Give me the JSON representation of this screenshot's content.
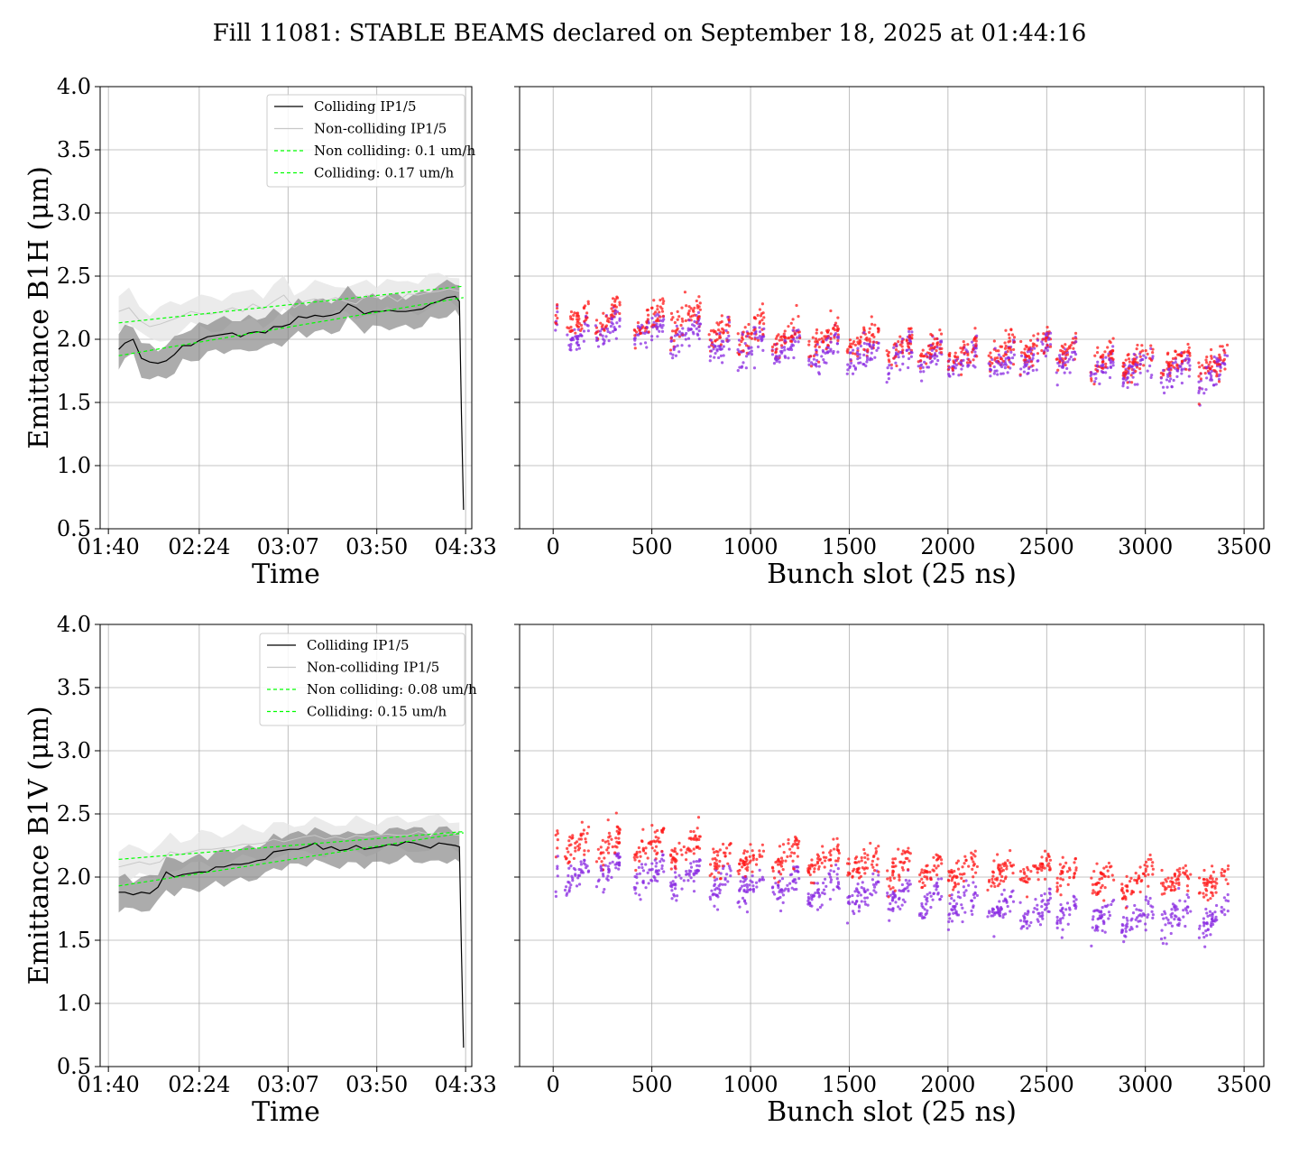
{
  "title": "Fill 11081: STABLE BEAMS declared on September 18, 2025 at 01:44:16",
  "colors": {
    "colliding_line": "#000000",
    "noncolliding_line": "#c8c8c8",
    "fit_line": "#00ff00",
    "colliding_band": "#7f7f7f",
    "noncolliding_band": "#e6e6e6",
    "beam_points_red": "#ff1a1a",
    "beam_points_purple": "#8a2be2"
  },
  "chart_data": [
    {
      "id": "b1h-time",
      "type": "line",
      "xlabel": "Time",
      "ylabel": "Emittance B1H (μm)",
      "ylim": [
        0.5,
        4.0
      ],
      "yticks": [
        "0.5",
        "1.0",
        "1.5",
        "2.0",
        "2.5",
        "3.0",
        "3.5",
        "4.0"
      ],
      "xlim_min": [
        96,
        276
      ],
      "xticks": [
        {
          "min": 100,
          "label": "01:40"
        },
        {
          "min": 144,
          "label": "02:24"
        },
        {
          "min": 187,
          "label": "03:07"
        },
        {
          "min": 230,
          "label": "03:50"
        },
        {
          "min": 273,
          "label": "04:33"
        }
      ],
      "grid": true,
      "legend_position": "upper-right",
      "legend": [
        "Colliding IP1/5",
        "Non-colliding IP1/5",
        "Non colliding: 0.1 um/h",
        "Colliding: 0.17 um/h"
      ],
      "series": [
        {
          "name": "Colliding IP1/5",
          "x": [
            105,
            108,
            112,
            116,
            120,
            124,
            128,
            132,
            136,
            140,
            144,
            148,
            152,
            156,
            160,
            164,
            168,
            172,
            176,
            180,
            184,
            188,
            192,
            196,
            200,
            204,
            208,
            212,
            216,
            220,
            224,
            228,
            232,
            236,
            240,
            244,
            248,
            252,
            256,
            260,
            264,
            268,
            270,
            271,
            272
          ],
          "values": [
            1.92,
            1.97,
            2.0,
            1.85,
            1.82,
            1.81,
            1.83,
            1.88,
            1.95,
            1.95,
            1.99,
            2.02,
            2.03,
            2.04,
            2.05,
            2.02,
            2.05,
            2.06,
            2.05,
            2.1,
            2.1,
            2.12,
            2.18,
            2.17,
            2.19,
            2.18,
            2.19,
            2.21,
            2.28,
            2.25,
            2.2,
            2.22,
            2.22,
            2.23,
            2.22,
            2.22,
            2.23,
            2.24,
            2.28,
            2.3,
            2.33,
            2.34,
            2.3,
            1.4,
            0.65
          ]
        },
        {
          "name": "Non-colliding IP1/5",
          "x": [
            105,
            110,
            115,
            120,
            125,
            130,
            135,
            140,
            145,
            150,
            155,
            160,
            165,
            170,
            175,
            180,
            185,
            190,
            195,
            200,
            205,
            210,
            215,
            220,
            225,
            230,
            235,
            240,
            245,
            250,
            255,
            260,
            265,
            270
          ],
          "values": [
            2.22,
            2.25,
            2.15,
            2.1,
            2.12,
            2.15,
            2.18,
            2.22,
            2.2,
            2.2,
            2.22,
            2.25,
            2.22,
            2.28,
            2.24,
            2.3,
            2.35,
            2.25,
            2.3,
            2.32,
            2.3,
            2.33,
            2.3,
            2.28,
            2.35,
            2.33,
            2.35,
            2.3,
            2.36,
            2.35,
            2.37,
            2.38,
            2.4,
            2.38
          ]
        },
        {
          "name": "Non colliding: 0.1 um/h",
          "x": [
            105,
            272
          ],
          "values": [
            2.13,
            2.42
          ]
        },
        {
          "name": "Colliding: 0.17 um/h",
          "x": [
            105,
            272
          ],
          "values": [
            1.87,
            2.33
          ]
        }
      ]
    },
    {
      "id": "b1h-bunch",
      "type": "scatter",
      "xlabel": "Bunch slot (25 ns)",
      "ylim": [
        0.5,
        4.0
      ],
      "xlim": [
        -170,
        3600
      ],
      "xticks": [
        "0",
        "500",
        "1000",
        "1500",
        "2000",
        "2500",
        "3000",
        "3500"
      ],
      "grid": true,
      "trains": [
        {
          "start": 10,
          "end": 25,
          "red": 2.22,
          "purple": 2.15
        },
        {
          "start": 60,
          "end": 180,
          "red": 2.15,
          "purple": 2.02
        },
        {
          "start": 215,
          "end": 340,
          "red": 2.17,
          "purple": 2.07
        },
        {
          "start": 410,
          "end": 560,
          "red": 2.15,
          "purple": 2.08
        },
        {
          "start": 595,
          "end": 750,
          "red": 2.15,
          "purple": 2.05
        },
        {
          "start": 790,
          "end": 900,
          "red": 2.05,
          "purple": 1.97
        },
        {
          "start": 935,
          "end": 1070,
          "red": 2.07,
          "purple": 1.95
        },
        {
          "start": 1110,
          "end": 1250,
          "red": 2.02,
          "purple": 1.93
        },
        {
          "start": 1290,
          "end": 1450,
          "red": 2.0,
          "purple": 1.9
        },
        {
          "start": 1490,
          "end": 1650,
          "red": 1.98,
          "purple": 1.88
        },
        {
          "start": 1690,
          "end": 1820,
          "red": 1.93,
          "purple": 1.85
        },
        {
          "start": 1850,
          "end": 1970,
          "red": 1.92,
          "purple": 1.85
        },
        {
          "start": 2000,
          "end": 2150,
          "red": 1.9,
          "purple": 1.83
        },
        {
          "start": 2200,
          "end": 2340,
          "red": 1.9,
          "purple": 1.83
        },
        {
          "start": 2360,
          "end": 2520,
          "red": 1.92,
          "purple": 1.86
        },
        {
          "start": 2550,
          "end": 2650,
          "red": 1.9,
          "purple": 1.85
        },
        {
          "start": 2720,
          "end": 2840,
          "red": 1.83,
          "purple": 1.77
        },
        {
          "start": 2880,
          "end": 3040,
          "red": 1.83,
          "purple": 1.77
        },
        {
          "start": 3080,
          "end": 3230,
          "red": 1.82,
          "purple": 1.75
        },
        {
          "start": 3270,
          "end": 3420,
          "red": 1.8,
          "purple": 1.73
        }
      ]
    },
    {
      "id": "b1v-time",
      "type": "line",
      "xlabel": "Time",
      "ylabel": "Emittance B1V (μm)",
      "ylim": [
        0.5,
        4.0
      ],
      "yticks": [
        "0.5",
        "1.0",
        "1.5",
        "2.0",
        "2.5",
        "3.0",
        "3.5",
        "4.0"
      ],
      "xlim_min": [
        96,
        276
      ],
      "xticks": [
        {
          "min": 100,
          "label": "01:40"
        },
        {
          "min": 144,
          "label": "02:24"
        },
        {
          "min": 187,
          "label": "03:07"
        },
        {
          "min": 230,
          "label": "03:50"
        },
        {
          "min": 273,
          "label": "04:33"
        }
      ],
      "grid": true,
      "legend_position": "upper-right",
      "legend": [
        "Colliding IP1/5",
        "Non-colliding IP1/5",
        "Non colliding: 0.08 um/h",
        "Colliding: 0.15 um/h"
      ],
      "series": [
        {
          "name": "Colliding IP1/5",
          "x": [
            105,
            108,
            112,
            116,
            120,
            124,
            128,
            132,
            136,
            140,
            144,
            148,
            152,
            156,
            160,
            164,
            168,
            172,
            176,
            180,
            184,
            188,
            192,
            196,
            200,
            204,
            208,
            212,
            216,
            220,
            224,
            228,
            232,
            236,
            240,
            244,
            248,
            252,
            256,
            260,
            264,
            268,
            270,
            271,
            272
          ],
          "values": [
            1.88,
            1.88,
            1.86,
            1.88,
            1.87,
            1.92,
            2.04,
            2.0,
            2.02,
            2.03,
            2.04,
            2.04,
            2.08,
            2.08,
            2.1,
            2.1,
            2.11,
            2.13,
            2.14,
            2.2,
            2.21,
            2.22,
            2.22,
            2.24,
            2.27,
            2.22,
            2.24,
            2.21,
            2.22,
            2.25,
            2.22,
            2.23,
            2.24,
            2.26,
            2.25,
            2.28,
            2.27,
            2.25,
            2.23,
            2.27,
            2.26,
            2.25,
            2.24,
            1.4,
            0.65
          ]
        },
        {
          "name": "Non-colliding IP1/5",
          "x": [
            105,
            110,
            115,
            120,
            125,
            130,
            135,
            140,
            145,
            150,
            155,
            160,
            165,
            170,
            175,
            180,
            185,
            190,
            195,
            200,
            205,
            210,
            215,
            220,
            225,
            230,
            235,
            240,
            245,
            250,
            255,
            260,
            265,
            270
          ],
          "values": [
            2.08,
            2.1,
            2.12,
            2.1,
            2.12,
            2.2,
            2.18,
            2.2,
            2.22,
            2.22,
            2.23,
            2.24,
            2.26,
            2.26,
            2.27,
            2.3,
            2.28,
            2.3,
            2.32,
            2.33,
            2.3,
            2.32,
            2.3,
            2.33,
            2.32,
            2.33,
            2.34,
            2.33,
            2.33,
            2.36,
            2.34,
            2.35,
            2.34,
            2.33
          ]
        },
        {
          "name": "Non colliding: 0.08 um/h",
          "x": [
            105,
            272
          ],
          "values": [
            2.14,
            2.36
          ]
        },
        {
          "name": "Colliding: 0.15 um/h",
          "x": [
            105,
            272
          ],
          "values": [
            1.93,
            2.35
          ]
        }
      ]
    },
    {
      "id": "b1v-bunch",
      "type": "scatter",
      "xlabel": "Bunch slot (25 ns)",
      "ylim": [
        0.5,
        4.0
      ],
      "xlim": [
        -170,
        3600
      ],
      "xticks": [
        "0",
        "500",
        "1000",
        "1500",
        "2000",
        "2500",
        "3000",
        "3500"
      ],
      "grid": true,
      "trains": [
        {
          "start": 10,
          "end": 25,
          "red": 2.28,
          "purple": 2.0
        },
        {
          "start": 60,
          "end": 180,
          "red": 2.25,
          "purple": 2.02
        },
        {
          "start": 215,
          "end": 340,
          "red": 2.25,
          "purple": 2.05
        },
        {
          "start": 410,
          "end": 560,
          "red": 2.25,
          "purple": 2.02
        },
        {
          "start": 595,
          "end": 750,
          "red": 2.22,
          "purple": 2.0
        },
        {
          "start": 790,
          "end": 900,
          "red": 2.12,
          "purple": 1.95
        },
        {
          "start": 935,
          "end": 1070,
          "red": 2.15,
          "purple": 1.93
        },
        {
          "start": 1110,
          "end": 1250,
          "red": 2.15,
          "purple": 1.92
        },
        {
          "start": 1290,
          "end": 1450,
          "red": 2.13,
          "purple": 1.9
        },
        {
          "start": 1490,
          "end": 1650,
          "red": 2.1,
          "purple": 1.88
        },
        {
          "start": 1690,
          "end": 1820,
          "red": 2.08,
          "purple": 1.85
        },
        {
          "start": 1850,
          "end": 1970,
          "red": 2.07,
          "purple": 1.82
        },
        {
          "start": 2000,
          "end": 2150,
          "red": 2.07,
          "purple": 1.8
        },
        {
          "start": 2200,
          "end": 2340,
          "red": 2.05,
          "purple": 1.78
        },
        {
          "start": 2360,
          "end": 2520,
          "red": 2.05,
          "purple": 1.73
        },
        {
          "start": 2550,
          "end": 2650,
          "red": 2.03,
          "purple": 1.72
        },
        {
          "start": 2720,
          "end": 2840,
          "red": 1.98,
          "purple": 1.68
        },
        {
          "start": 2880,
          "end": 3040,
          "red": 1.98,
          "purple": 1.68
        },
        {
          "start": 3080,
          "end": 3230,
          "red": 1.97,
          "purple": 1.68
        },
        {
          "start": 3270,
          "end": 3420,
          "red": 1.96,
          "purple": 1.67
        }
      ]
    }
  ]
}
